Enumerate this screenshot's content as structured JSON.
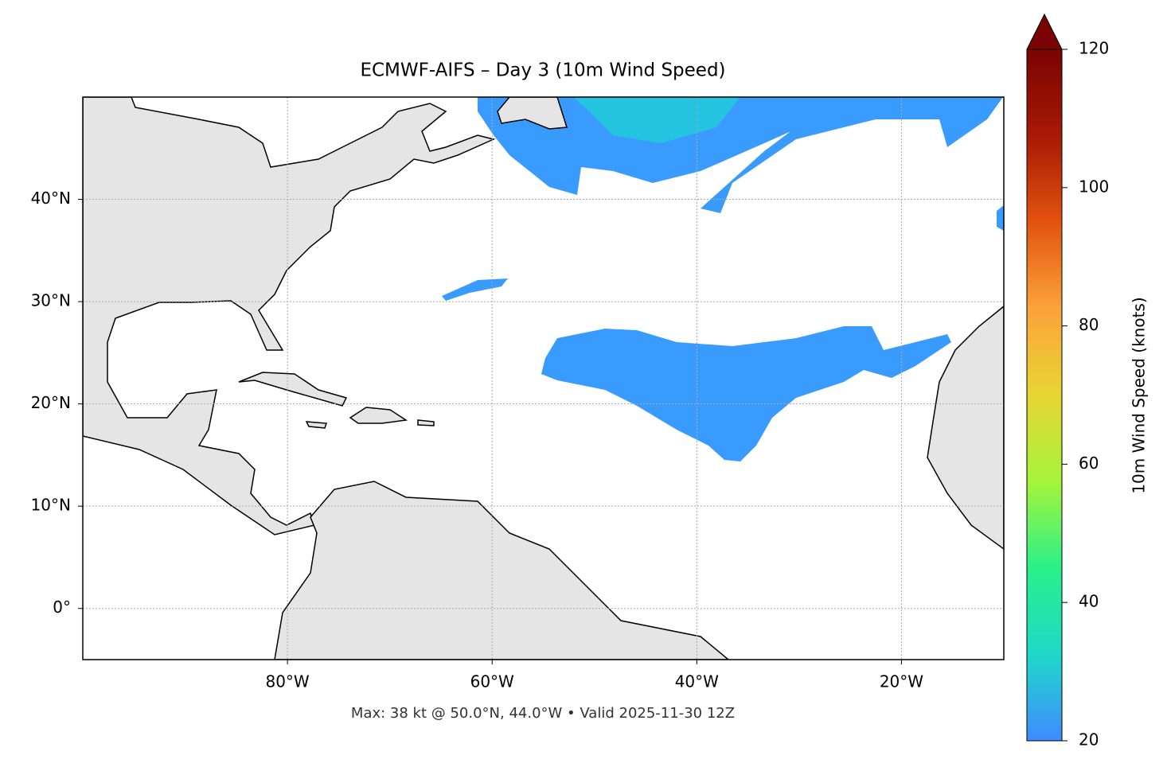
{
  "map": {
    "title": "ECMWF-AIFS – Day 3 (10m Wind Speed)",
    "note": "Max: 38 kt @ 50.0°N, 44.0°W • Valid 2025-11-30 12Z",
    "xlim": [
      -100,
      -10
    ],
    "ylim": [
      -5,
      50
    ],
    "xticks": [
      {
        "value": -80,
        "label": "80°W"
      },
      {
        "value": -60,
        "label": "60°W"
      },
      {
        "value": -40,
        "label": "40°W"
      },
      {
        "value": -20,
        "label": "20°W"
      }
    ],
    "yticks": [
      {
        "value": 0,
        "label": "0°"
      },
      {
        "value": 10,
        "label": "10°N"
      },
      {
        "value": 20,
        "label": "20°N"
      },
      {
        "value": 30,
        "label": "30°N"
      },
      {
        "value": 40,
        "label": "40°N"
      }
    ],
    "grid": true,
    "colorbar": {
      "label": "10m Wind Speed (knots)",
      "lim": [
        20,
        120
      ],
      "ticks": [
        20,
        40,
        60,
        80,
        100,
        120
      ],
      "colors": [
        "#3f8cff",
        "#1fd8c8",
        "#2af08a",
        "#a6f43a",
        "#e8d534",
        "#fba33a",
        "#e2530f",
        "#a71905",
        "#7a0403"
      ]
    }
  }
}
